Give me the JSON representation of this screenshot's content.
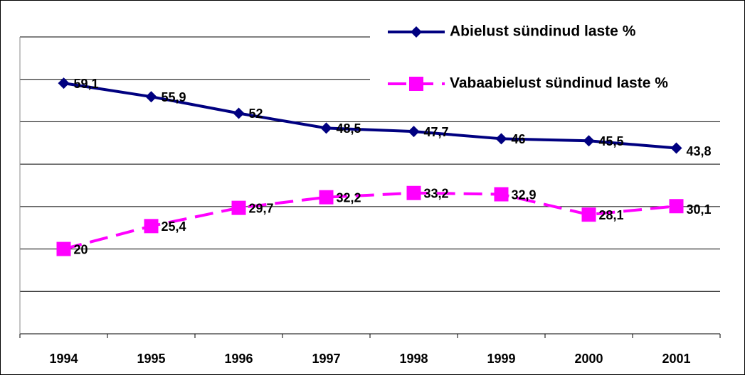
{
  "chart_data": {
    "type": "line",
    "categories": [
      "1994",
      "1995",
      "1996",
      "1997",
      "1998",
      "1999",
      "2000",
      "2001"
    ],
    "series": [
      {
        "name": "Abielust sündinud laste %",
        "color": "#000080",
        "marker": "diamond",
        "dashed": false,
        "values": [
          59.1,
          55.9,
          52,
          48.5,
          47.7,
          46,
          45.5,
          43.8
        ],
        "value_labels": [
          "59,1",
          "55,9",
          "52",
          "48,5",
          "47,7",
          "46",
          "45,5",
          "43,8"
        ]
      },
      {
        "name": "Vabaabielust sündinud laste %",
        "color": "#ff00ff",
        "marker": "square",
        "dashed": true,
        "values": [
          20,
          25.4,
          29.7,
          32.2,
          33.2,
          32.9,
          28.1,
          30.1
        ],
        "value_labels": [
          "20",
          "25,4",
          "29,7",
          "32,2",
          "33,2",
          "32,9",
          "28,1",
          "30,1"
        ]
      }
    ],
    "ylim": [
      0,
      70
    ],
    "yticks": [
      0,
      10,
      20,
      30,
      40,
      50,
      60,
      70
    ],
    "grid": true,
    "legend": "top-right"
  }
}
